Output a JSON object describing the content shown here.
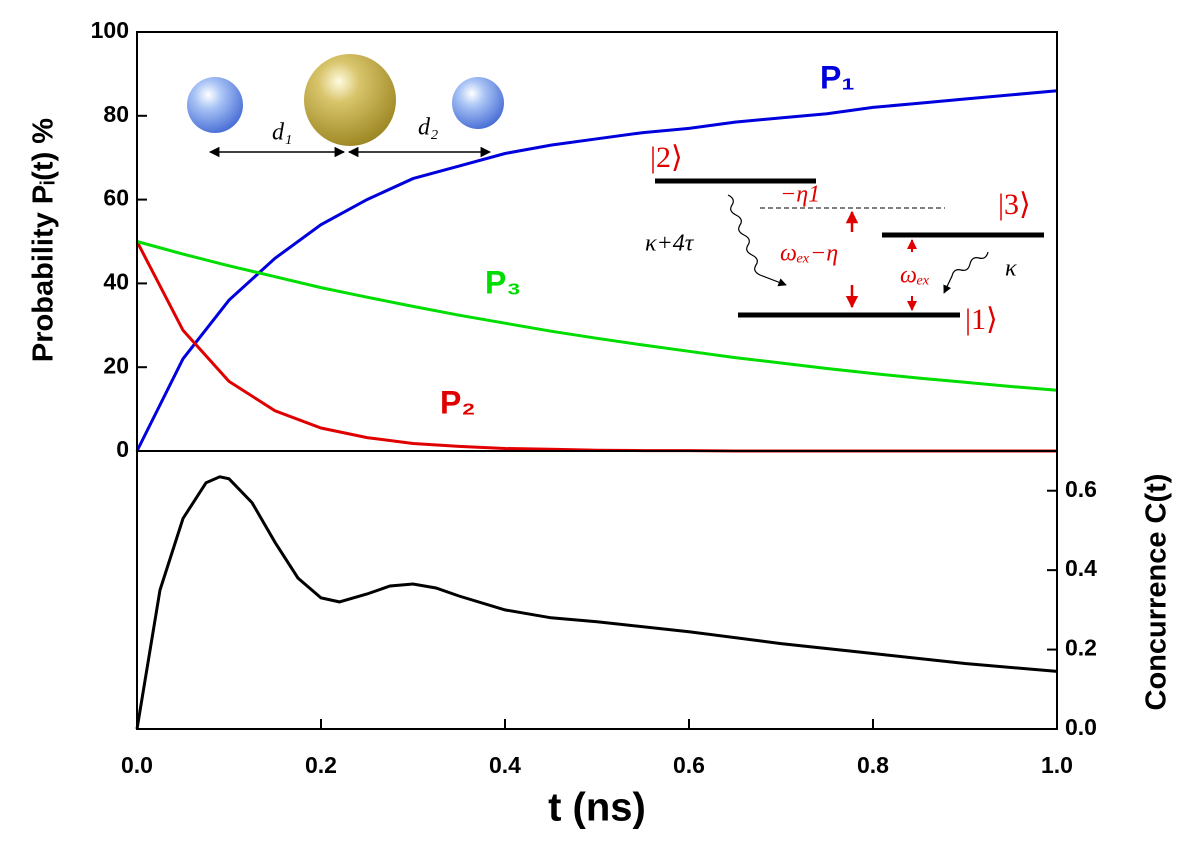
{
  "chart_data": [
    {
      "type": "line",
      "ylabel": "Probability Pᵢ(t) %",
      "x": [
        0,
        0.05,
        0.1,
        0.15,
        0.2,
        0.25,
        0.3,
        0.35,
        0.4,
        0.45,
        0.5,
        0.55,
        0.6,
        0.65,
        0.7,
        0.75,
        0.8,
        0.85,
        0.9,
        0.95,
        1.0
      ],
      "series": [
        {
          "name": "P₁",
          "color": "#0000dd",
          "values": [
            0,
            22,
            36,
            46,
            54,
            60,
            65,
            68,
            71,
            73,
            74.5,
            76,
            77,
            78.5,
            79.5,
            80.5,
            82,
            83,
            84,
            85,
            86
          ]
        },
        {
          "name": "P₂",
          "color": "#e00000",
          "values": [
            50,
            28.8,
            16.6,
            9.6,
            5.5,
            3.2,
            1.8,
            1.1,
            0.6,
            0.4,
            0.2,
            0.1,
            0.1,
            0,
            0,
            0,
            0,
            0,
            0,
            0,
            0
          ]
        },
        {
          "name": "P₃",
          "color": "#00dd00",
          "values": [
            50,
            47,
            44.2,
            41.6,
            39,
            36.7,
            34.5,
            32.4,
            30.5,
            28.6,
            26.9,
            25.3,
            23.8,
            22.3,
            21,
            19.7,
            18.5,
            17.4,
            16.4,
            15.4,
            14.5
          ]
        }
      ],
      "xlim": [
        0,
        1.0
      ],
      "ylim": [
        0,
        100
      ],
      "yticks": [
        0,
        20,
        40,
        60,
        80,
        100
      ]
    },
    {
      "type": "line",
      "xlabel": "t (ns)",
      "y2label": "Concurrence C(t)",
      "x": [
        0,
        0.025,
        0.05,
        0.075,
        0.09,
        0.1,
        0.125,
        0.15,
        0.175,
        0.2,
        0.22,
        0.25,
        0.275,
        0.3,
        0.325,
        0.35,
        0.4,
        0.45,
        0.5,
        0.6,
        0.7,
        0.8,
        0.9,
        1.0
      ],
      "series": [
        {
          "color": "#000000",
          "axis": "y2",
          "values": [
            0,
            0.35,
            0.53,
            0.62,
            0.635,
            0.63,
            0.57,
            0.47,
            0.38,
            0.33,
            0.32,
            0.34,
            0.36,
            0.365,
            0.355,
            0.335,
            0.3,
            0.28,
            0.27,
            0.245,
            0.215,
            0.19,
            0.165,
            0.145
          ]
        }
      ],
      "xlim": [
        0,
        1.0
      ],
      "xticks": [
        {
          "value": 0,
          "label": "0.0"
        },
        {
          "value": 0.2,
          "label": "0.2"
        },
        {
          "value": 0.4,
          "label": "0.4"
        },
        {
          "value": 0.6,
          "label": "0.6"
        },
        {
          "value": 0.8,
          "label": "0.8"
        },
        {
          "value": 1.0,
          "label": "1.0"
        }
      ],
      "y2lim": [
        0,
        0.7
      ],
      "y2ticks": [
        {
          "value": 0,
          "label": "0.0"
        },
        {
          "value": 0.2,
          "label": "0.2"
        },
        {
          "value": 0.4,
          "label": "0.4"
        },
        {
          "value": 0.6,
          "label": "0.6"
        }
      ]
    }
  ],
  "inset": {
    "d1": "d₁",
    "d2": "d₂",
    "state2": "|2⟩",
    "state3": "|3⟩",
    "state1": "|1⟩",
    "shift": "−η1",
    "rate23": "κ+4τ",
    "freq2": "ωₑₓ−η",
    "freq3": "ωₑₓ",
    "rate3": "κ"
  }
}
